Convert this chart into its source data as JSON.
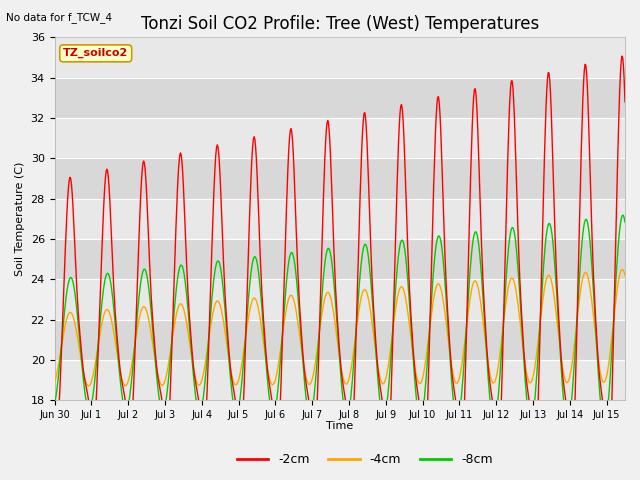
{
  "title": "Tonzi Soil CO2 Profile: Tree (West) Temperatures",
  "no_data_label": "No data for f_TCW_4",
  "site_label": "TZ_soilco2",
  "ylabel": "Soil Temperature (C)",
  "xlabel": "Time",
  "ylim": [
    18,
    36
  ],
  "background_color": "#f0f0f0",
  "plot_bg_color": "#e8e8e8",
  "series": [
    {
      "label": "-2cm",
      "color": "#ff0000"
    },
    {
      "label": "-4cm",
      "color": "#ffa500"
    },
    {
      "label": "-8cm",
      "color": "#00cc00"
    }
  ],
  "x_tick_labels": [
    "Jun 30",
    "Jul 1",
    "Jul 2",
    "Jul 3",
    "Jul 4",
    "Jul 5",
    "Jul 6",
    "Jul 7",
    "Jul 8",
    "Jul 9",
    "Jul 10",
    "Jul 11",
    "Jul 12",
    "Jul 13",
    "Jul 14",
    "Jul 15"
  ],
  "grid_color": "#ffffff",
  "legend_fontsize": 9,
  "title_fontsize": 12,
  "band_light": "#e8e8e8",
  "band_dark": "#d8d8d8"
}
